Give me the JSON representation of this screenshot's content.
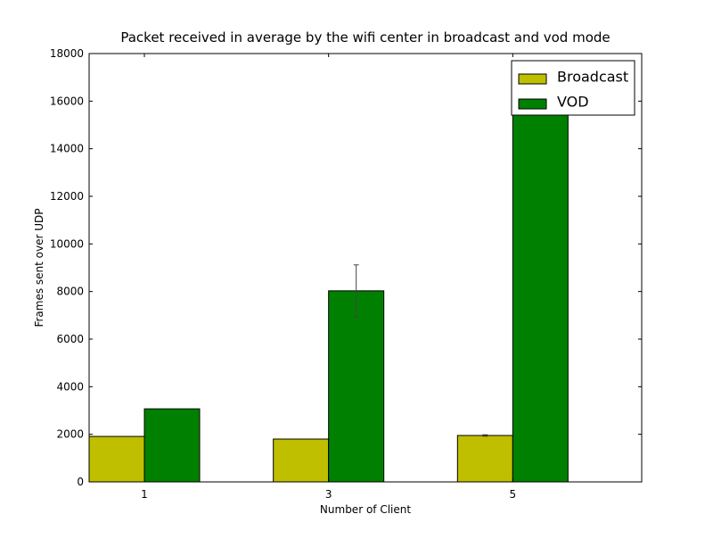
{
  "chart_data": {
    "type": "bar",
    "title": "Packet received in average by the wifi center in broadcast and vod mode",
    "xlabel": "Number of Client",
    "ylabel": "Frames sent over UDP",
    "categories": [
      "1",
      "3",
      "5"
    ],
    "x": [
      1,
      3,
      5
    ],
    "xlim": [
      0.4,
      6.4
    ],
    "ylim": [
      0,
      18000
    ],
    "yticks": [
      0,
      2000,
      4000,
      6000,
      8000,
      10000,
      12000,
      14000,
      16000,
      18000
    ],
    "bar_width": 0.6,
    "series": [
      {
        "name": "Broadcast",
        "color": "#bfbf00",
        "values": [
          1910,
          1800,
          1950
        ],
        "errors": [
          0,
          0,
          30
        ]
      },
      {
        "name": "VOD",
        "color": "#008000",
        "values": [
          3070,
          8030,
          16500
        ],
        "errors": [
          0,
          1090,
          0
        ]
      }
    ],
    "legend_position": "top-right",
    "grid": false
  }
}
